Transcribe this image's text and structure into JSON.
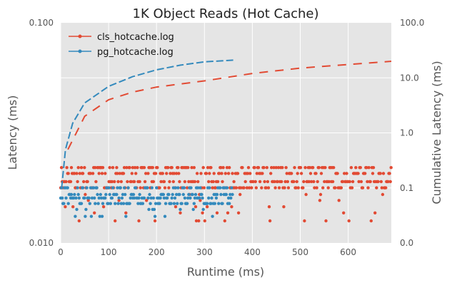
{
  "chart_data": {
    "type": "scatter",
    "title": "1K Object Reads (Hot Cache)",
    "xlabel": "Runtime (ms)",
    "ylabel_left": "Latency (ms)",
    "ylabel_right": "Cumulative Latency (ms)",
    "xlim": [
      0,
      690
    ],
    "ylim_left": [
      0.01,
      0.1
    ],
    "ylim_right": [
      0.0,
      100.0
    ],
    "x_ticks": [
      0,
      100,
      200,
      300,
      400,
      500,
      600
    ],
    "y_ticks_left": [
      "0.100",
      "0.010"
    ],
    "y_ticks_right": [
      "100.0",
      "10.0",
      "1.0",
      "0.1",
      "0.0"
    ],
    "grid": true,
    "legend_position": "top-left",
    "series": [
      {
        "name": "cls_hotcache.log",
        "color": "#e24a33",
        "latency_levels": [
          0.0126,
          0.0137,
          0.0146,
          0.0156,
          0.0166,
          0.0178,
          0.019,
          0.0207,
          0.022
        ],
        "latency_x_range": [
          0,
          690
        ],
        "cumulative_latency": [
          [
            15,
            0.5
          ],
          [
            50,
            2.0
          ],
          [
            100,
            4.0
          ],
          [
            150,
            5.5
          ],
          [
            200,
            6.8
          ],
          [
            300,
            8.8
          ],
          [
            400,
            12.0
          ],
          [
            500,
            15.0
          ],
          [
            600,
            17.5
          ],
          [
            690,
            20.0
          ]
        ]
      },
      {
        "name": "pg_hotcache.log",
        "color": "#348abd",
        "latency_levels": [
          0.0132,
          0.0142,
          0.0151,
          0.016,
          0.0166,
          0.0178
        ],
        "latency_x_range": [
          0,
          360
        ],
        "cumulative_latency": [
          [
            2,
            0.1
          ],
          [
            10,
            0.5
          ],
          [
            25,
            1.5
          ],
          [
            50,
            3.5
          ],
          [
            100,
            7.0
          ],
          [
            150,
            10.5
          ],
          [
            200,
            14.0
          ],
          [
            250,
            17.0
          ],
          [
            300,
            19.5
          ],
          [
            360,
            21.0
          ]
        ]
      }
    ]
  }
}
